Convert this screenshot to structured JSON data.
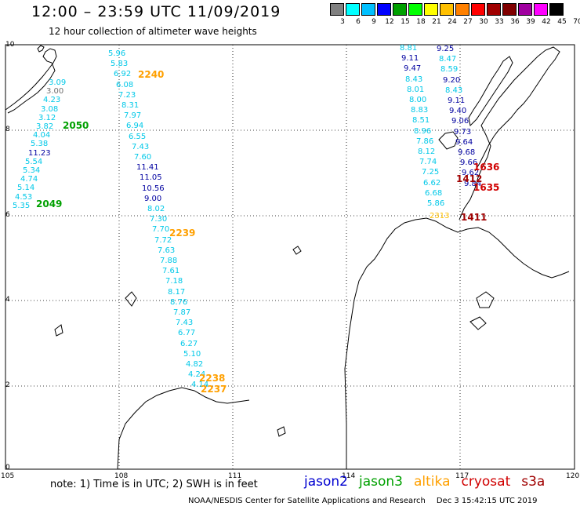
{
  "header": {
    "title": "12:00 – 23:59 UTC 11/09/2019",
    "subtitle": "12 hour collection of altimeter wave heights"
  },
  "colorbar": {
    "colors": [
      "#808080",
      "#00ffff",
      "#00c0ff",
      "#0000ff",
      "#00a000",
      "#00ff00",
      "#ffff00",
      "#ffc000",
      "#ff8000",
      "#ff0000",
      "#a00000",
      "#800000",
      "#a000a0",
      "#ff00ff",
      "#000000"
    ],
    "labels": [
      "3",
      "6",
      "9",
      "12",
      "15",
      "18",
      "21",
      "24",
      "27",
      "30",
      "33",
      "36",
      "39",
      "42",
      "45",
      "70"
    ],
    "unit": "(ft)"
  },
  "axes": {
    "y_ticks": [
      "10",
      "8",
      "6",
      "4",
      "2",
      "0"
    ],
    "x_ticks": [
      "105",
      "108",
      "111",
      "114",
      "117",
      "120"
    ]
  },
  "left_track": [
    "3.09",
    "3.00",
    "4.23",
    "3.08",
    "3.12",
    "3.82",
    "4.04",
    "5.38",
    "11.23",
    "5.54",
    "5.34",
    "4.74",
    "5.14",
    "4.53",
    "5.35"
  ],
  "middle_track": [
    "5.96",
    "5.83",
    "6.92",
    "6.08",
    "7.23",
    "8.31",
    "7.97",
    "6.94",
    "6.55",
    "7.43",
    "7.60",
    "11.41",
    "11.05",
    "10.56",
    "9.00",
    "8.02",
    "7.30",
    "7.70",
    "7.72",
    "7.63",
    "7.88",
    "7.61",
    "7.18",
    "8.17",
    "8.76",
    "7.87",
    "7.43",
    "6.77",
    "6.27",
    "5.10",
    "4.82",
    "4.24",
    "4.14"
  ],
  "right_track_a": [
    "8.81",
    "9.11",
    "9.47",
    "8.43",
    "8.01",
    "8.00",
    "8.83",
    "8.51",
    "8.96",
    "7.86",
    "8.12",
    "7.74",
    "7.25",
    "6.62",
    "6.68",
    "5.86"
  ],
  "right_track_b": [
    "9.25",
    "8.47",
    "8.59",
    "9.20",
    "8.43",
    "9.11",
    "9.40",
    "9.06",
    "9.73",
    "9.64",
    "9.68",
    "9.66",
    "9.62",
    "9.84"
  ],
  "times": {
    "t2240": "2240",
    "t2050": "2050",
    "t2049": "2049",
    "t2239": "2239",
    "t2238": "2238",
    "t2237": "2237",
    "t1636": "1636",
    "t1412": "1412",
    "t1635": "1635",
    "t1411": "1411",
    "t2313": "2313"
  },
  "footer": {
    "note": "note:  1) Time is in UTC;  2) SWH is in feet",
    "satellites": [
      {
        "name": "jason2",
        "color": "#0000d0"
      },
      {
        "name": "jason3",
        "color": "#00a000"
      },
      {
        "name": "altika",
        "color": "#ffa000"
      },
      {
        "name": "cryosat",
        "color": "#d00000"
      },
      {
        "name": "s3a",
        "color": "#a00000"
      }
    ],
    "credit": "NOAA/NESDIS Center for Satellite Applications and Research",
    "date": "Dec  3 15:42:15 UTC 2019"
  }
}
